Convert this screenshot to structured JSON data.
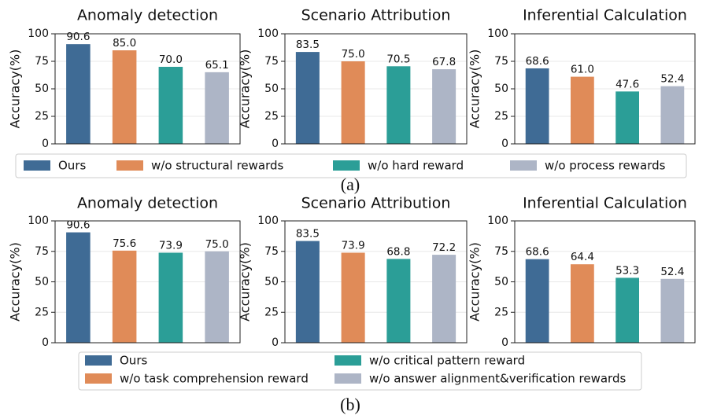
{
  "chart_data": [
    {
      "type": "bar",
      "title": "Anomaly detection",
      "y_label": "Accuracy(%)",
      "ylim": [
        0,
        100
      ],
      "yticks": [
        0,
        25,
        50,
        75,
        100
      ],
      "grid": true,
      "series": [
        {
          "name": "Ours",
          "color": "#3f6b95",
          "values": [
            90.6
          ],
          "value_labels": [
            "90.6"
          ]
        },
        {
          "name": "w/o structural rewards",
          "color": "#e08b58",
          "values": [
            85.0
          ],
          "value_labels": [
            "85.0"
          ]
        },
        {
          "name": "w/o hard reward",
          "color": "#2b9e97",
          "values": [
            70.0
          ],
          "value_labels": [
            "70.0"
          ]
        },
        {
          "name": "w/o process rewards",
          "color": "#adb5c6",
          "values": [
            65.1
          ],
          "value_labels": [
            "65.1"
          ]
        }
      ]
    },
    {
      "type": "bar",
      "title": "Scenario Attribution",
      "y_label": "Accuracy(%)",
      "ylim": [
        0,
        100
      ],
      "yticks": [
        0,
        25,
        50,
        75,
        100
      ],
      "grid": true,
      "series": [
        {
          "name": "Ours",
          "color": "#3f6b95",
          "values": [
            83.5
          ],
          "value_labels": [
            "83.5"
          ]
        },
        {
          "name": "w/o structural rewards",
          "color": "#e08b58",
          "values": [
            75.0
          ],
          "value_labels": [
            "75.0"
          ]
        },
        {
          "name": "w/o hard reward",
          "color": "#2b9e97",
          "values": [
            70.5
          ],
          "value_labels": [
            "70.5"
          ]
        },
        {
          "name": "w/o process rewards",
          "color": "#adb5c6",
          "values": [
            67.8
          ],
          "value_labels": [
            "67.8"
          ]
        }
      ]
    },
    {
      "type": "bar",
      "title": "Inferential Calculation",
      "y_label": "Accuracy(%)",
      "ylim": [
        0,
        100
      ],
      "yticks": [
        0,
        25,
        50,
        75,
        100
      ],
      "grid": true,
      "series": [
        {
          "name": "Ours",
          "color": "#3f6b95",
          "values": [
            68.6
          ],
          "value_labels": [
            "68.6"
          ]
        },
        {
          "name": "w/o structural rewards",
          "color": "#e08b58",
          "values": [
            61.0
          ],
          "value_labels": [
            "61.0"
          ]
        },
        {
          "name": "w/o hard reward",
          "color": "#2b9e97",
          "values": [
            47.6
          ],
          "value_labels": [
            "47.6"
          ]
        },
        {
          "name": "w/o process rewards",
          "color": "#adb5c6",
          "values": [
            52.4
          ],
          "value_labels": [
            "52.4"
          ]
        }
      ]
    },
    {
      "type": "bar",
      "title": "Anomaly detection",
      "y_label": "Accuracy(%)",
      "ylim": [
        0,
        100
      ],
      "yticks": [
        0,
        25,
        50,
        75,
        100
      ],
      "grid": true,
      "series": [
        {
          "name": "Ours",
          "color": "#3f6b95",
          "values": [
            90.6
          ],
          "value_labels": [
            "90.6"
          ]
        },
        {
          "name": "w/o task comprehension reward",
          "color": "#e08b58",
          "values": [
            75.6
          ],
          "value_labels": [
            "75.6"
          ]
        },
        {
          "name": "w/o critical pattern reward",
          "color": "#2b9e97",
          "values": [
            73.9
          ],
          "value_labels": [
            "73.9"
          ]
        },
        {
          "name": "w/o answer alignment&verification rewards",
          "color": "#adb5c6",
          "values": [
            75.0
          ],
          "value_labels": [
            "75.0"
          ]
        }
      ]
    },
    {
      "type": "bar",
      "title": "Scenario Attribution",
      "y_label": "Accuracy(%)",
      "ylim": [
        0,
        100
      ],
      "yticks": [
        0,
        25,
        50,
        75,
        100
      ],
      "grid": true,
      "series": [
        {
          "name": "Ours",
          "color": "#3f6b95",
          "values": [
            83.5
          ],
          "value_labels": [
            "83.5"
          ]
        },
        {
          "name": "w/o task comprehension reward",
          "color": "#e08b58",
          "values": [
            73.9
          ],
          "value_labels": [
            "73.9"
          ]
        },
        {
          "name": "w/o critical pattern reward",
          "color": "#2b9e97",
          "values": [
            68.8
          ],
          "value_labels": [
            "68.8"
          ]
        },
        {
          "name": "w/o answer alignment&verification rewards",
          "color": "#adb5c6",
          "values": [
            72.2
          ],
          "value_labels": [
            "72.2"
          ]
        }
      ]
    },
    {
      "type": "bar",
      "title": "Inferential Calculation",
      "y_label": "Accuracy(%)",
      "ylim": [
        0,
        100
      ],
      "yticks": [
        0,
        25,
        50,
        75,
        100
      ],
      "grid": true,
      "series": [
        {
          "name": "Ours",
          "color": "#3f6b95",
          "values": [
            68.6
          ],
          "value_labels": [
            "68.6"
          ]
        },
        {
          "name": "w/o task comprehension reward",
          "color": "#e08b58",
          "values": [
            64.4
          ],
          "value_labels": [
            "64.4"
          ]
        },
        {
          "name": "w/o critical pattern reward",
          "color": "#2b9e97",
          "values": [
            53.3
          ],
          "value_labels": [
            "53.3"
          ]
        },
        {
          "name": "w/o answer alignment&verification rewards",
          "color": "#adb5c6",
          "values": [
            52.4
          ],
          "value_labels": [
            "52.4"
          ]
        }
      ]
    }
  ],
  "figure_labels": [
    "(a)",
    "(b)"
  ]
}
